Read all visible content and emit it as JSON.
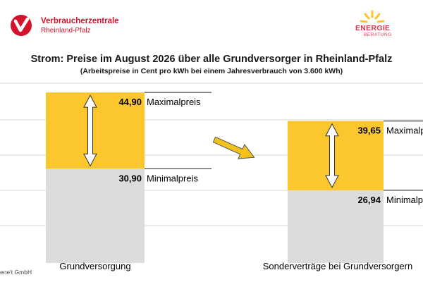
{
  "header": {
    "brand_left": {
      "name": "Verbraucherzentrale",
      "region": "Rheinland-Pfalz"
    },
    "brand_right": {
      "line1": "ENERGIE",
      "line2": "BERATUNG"
    },
    "title": "Strom: Preise im August 2026 über alle Grundversorger in Rheinland-Pfalz",
    "subtitle": "(Arbeitspreise in Cent pro kWh bei einem Jahresverbrauch von 3.600 kWh)"
  },
  "footer": {
    "source": "ene't GmbH"
  },
  "colors": {
    "max_range": "#fcc72c",
    "min_range": "#dcdcdc",
    "brand_red": "#d5122b",
    "arrow": "#f2c21b"
  },
  "icons": {
    "logo_left": "verbraucherzentrale-check-logo",
    "logo_right": "sun-rays-logo",
    "connector": "arrow-right-down-icon",
    "range": "double-arrow-icon"
  },
  "chart_data": {
    "type": "bar",
    "categories": [
      "Grundversorgung",
      "Sonderverträge bei Grundversorgern"
    ],
    "series": [
      {
        "name": "Maximalpreis",
        "values": [
          44.9,
          39.65
        ]
      },
      {
        "name": "Minimalpreis",
        "values": [
          30.9,
          26.94
        ]
      }
    ],
    "value_labels": [
      {
        "max": "44,90",
        "min": "30,90"
      },
      {
        "max": "39,65",
        "min": "26,94"
      }
    ],
    "annotations": [
      {
        "max": "Maximalpreis",
        "min": "Minimalpreis"
      },
      {
        "max": "Maximalpreis",
        "min": "Minimalpreis"
      }
    ],
    "ylim": [
      13.6,
      46.6
    ],
    "grid": true
  }
}
